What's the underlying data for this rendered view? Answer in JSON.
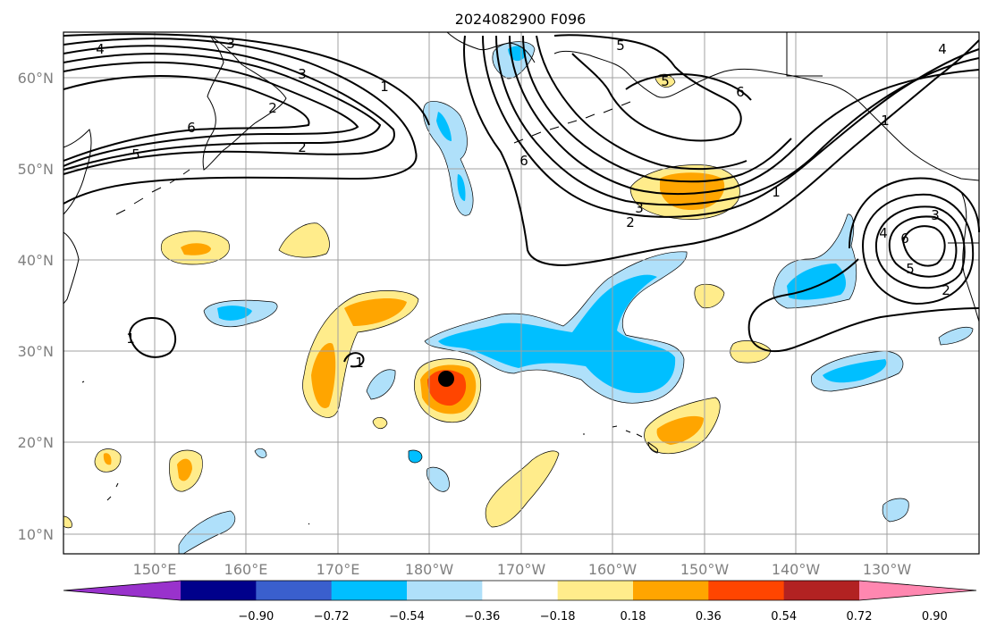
{
  "title": "2024082900 F096",
  "map": {
    "lat_labels": [
      "60°N",
      "50°N",
      "40°N",
      "30°N",
      "20°N",
      "10°N"
    ],
    "lon_labels": [
      "150°E",
      "160°E",
      "170°E",
      "180°W",
      "170°W",
      "160°W",
      "150°W",
      "140°W",
      "130°W"
    ],
    "marker": {
      "name": "storm-center-marker",
      "color": "#000000"
    }
  },
  "colorbar": {
    "colors": [
      "#9932cc",
      "#00008b",
      "#3a5fcd",
      "#00bfff",
      "#afe0fa",
      "#ffffff",
      "#ffec8b",
      "#ffa500",
      "#ff4500",
      "#b22222",
      "#ff87b0"
    ],
    "labels": [
      "−0.90",
      "−0.72",
      "−0.54",
      "−0.36",
      "−0.18",
      "0.18",
      "0.36",
      "0.54",
      "0.72",
      "0.90"
    ]
  },
  "contours": {
    "labels": [
      {
        "text": "4"
      },
      {
        "text": "3"
      },
      {
        "text": "2"
      },
      {
        "text": "6"
      },
      {
        "text": "5"
      },
      {
        "text": "3"
      },
      {
        "text": "2"
      },
      {
        "text": "1"
      },
      {
        "text": "6"
      },
      {
        "text": "5"
      },
      {
        "text": "5"
      },
      {
        "text": "6"
      },
      {
        "text": "4"
      },
      {
        "text": "1"
      },
      {
        "text": "3"
      },
      {
        "text": "2"
      },
      {
        "text": "1"
      },
      {
        "text": "3"
      },
      {
        "text": "4"
      },
      {
        "text": "6"
      },
      {
        "text": "5"
      },
      {
        "text": "2"
      },
      {
        "text": "1"
      },
      {
        "text": "1"
      }
    ]
  }
}
